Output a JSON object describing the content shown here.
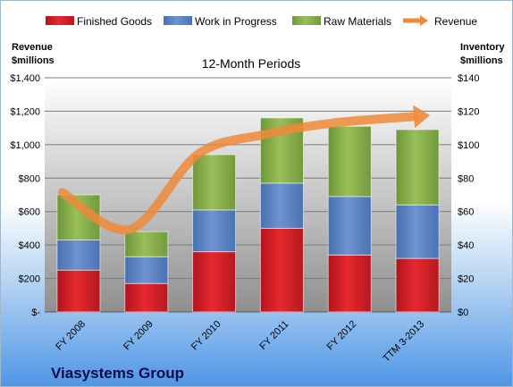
{
  "chart_data": {
    "type": "bar",
    "subtitle": "12-Month Periods",
    "company": "Viasystems Group",
    "left_axis_title": [
      "Revenue",
      "$millions"
    ],
    "right_axis_title": [
      "Inventory",
      "$millions"
    ],
    "categories": [
      "FY 2008",
      "FY 2009",
      "FY 2010",
      "FY 2011",
      "FY 2012",
      "TTM 3-2013"
    ],
    "stacked": true,
    "series": [
      {
        "name": "Finished Goods",
        "axis": "right",
        "color": "#e0202a",
        "values": [
          25,
          17,
          36,
          50,
          34,
          32
        ]
      },
      {
        "name": "Work in Progress",
        "axis": "right",
        "color": "#5e84c4",
        "values": [
          18,
          16,
          25,
          27,
          35,
          32
        ]
      },
      {
        "name": "Raw Materials",
        "axis": "right",
        "color": "#8bb14a",
        "values": [
          27,
          15,
          33,
          39,
          42,
          45
        ]
      },
      {
        "name": "Revenue",
        "axis": "left",
        "type": "line",
        "style": "smoothed-arrow",
        "color": "#ee8a3a",
        "values": [
          713,
          494,
          943,
          1062,
          1130,
          1168
        ]
      }
    ],
    "left_axis": {
      "min": 0,
      "max": 1400,
      "step": 200,
      "labels": [
        "$-",
        "$200",
        "$400",
        "$600",
        "$800",
        "$1,000",
        "$1,200",
        "$1,400"
      ]
    },
    "right_axis": {
      "min": 0,
      "max": 140,
      "step": 20,
      "labels": [
        "$0",
        "$20",
        "$40",
        "$60",
        "$80",
        "$100",
        "$120",
        "$140"
      ]
    },
    "grid": true,
    "legend_position": "top",
    "plot_background": "gradient-gray"
  }
}
